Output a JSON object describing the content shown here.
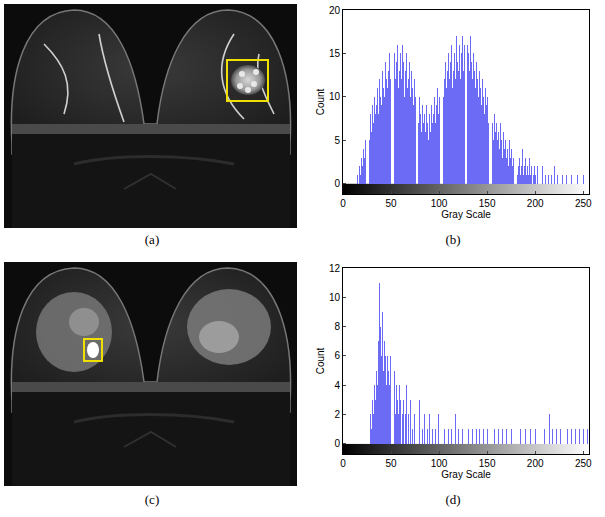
{
  "images": [
    {
      "label": "(a)"
    },
    {
      "label": "(c)"
    }
  ],
  "chart_data": [
    {
      "type": "bar",
      "title": "(b)",
      "x_label": "Gray Scale",
      "y_label": "Count",
      "color": "#6b6bf5",
      "grid": false,
      "xlim": [
        0,
        256
      ],
      "xticks": [
        0,
        50,
        100,
        150,
        200,
        250
      ],
      "ylim": [
        -1.2,
        20
      ],
      "yticks": [
        0,
        5,
        10,
        15,
        20
      ],
      "x": [
        15,
        16,
        17,
        18,
        19,
        20,
        21,
        22,
        23,
        24,
        25,
        26,
        27,
        28,
        29,
        30,
        31,
        32,
        33,
        34,
        35,
        36,
        37,
        38,
        39,
        40,
        41,
        42,
        43,
        44,
        45,
        46,
        47,
        48,
        49,
        50,
        51,
        52,
        53,
        54,
        55,
        56,
        57,
        58,
        59,
        60,
        61,
        62,
        63,
        64,
        65,
        66,
        67,
        68,
        69,
        70,
        71,
        72,
        73,
        74,
        75,
        76,
        77,
        78,
        79,
        80,
        81,
        82,
        83,
        84,
        85,
        86,
        87,
        88,
        89,
        90,
        91,
        92,
        93,
        94,
        95,
        96,
        97,
        98,
        99,
        100,
        101,
        102,
        103,
        104,
        105,
        106,
        107,
        108,
        109,
        110,
        111,
        112,
        113,
        114,
        115,
        116,
        117,
        118,
        119,
        120,
        121,
        122,
        123,
        124,
        125,
        126,
        127,
        128,
        129,
        130,
        131,
        132,
        133,
        134,
        135,
        136,
        137,
        138,
        139,
        140,
        141,
        142,
        143,
        144,
        145,
        146,
        147,
        148,
        149,
        150,
        151,
        152,
        153,
        154,
        155,
        156,
        157,
        158,
        159,
        160,
        161,
        162,
        163,
        164,
        165,
        166,
        167,
        168,
        169,
        170,
        171,
        172,
        173,
        174,
        175,
        176,
        177,
        178,
        179,
        180,
        181,
        182,
        183,
        184,
        185,
        186,
        187,
        188,
        189,
        190,
        191,
        192,
        193,
        194,
        195,
        196,
        197,
        198,
        199,
        200,
        202,
        204,
        206,
        208,
        211,
        214,
        217,
        220,
        223,
        228,
        233,
        238,
        244,
        250
      ],
      "values": [
        1,
        0,
        2,
        1,
        3,
        2,
        4,
        3,
        5,
        2,
        6,
        4,
        7,
        5,
        8,
        6,
        9,
        7,
        10,
        8,
        9,
        11,
        8,
        12,
        10,
        9,
        13,
        11,
        10,
        14,
        12,
        11,
        13,
        15,
        12,
        10,
        14,
        13,
        11,
        15,
        12,
        14,
        16,
        11,
        13,
        15,
        12,
        16,
        14,
        10,
        13,
        15,
        11,
        12,
        14,
        10,
        13,
        11,
        9,
        12,
        10,
        8,
        11,
        9,
        7,
        10,
        8,
        6,
        9,
        7,
        8,
        6,
        9,
        7,
        5,
        8,
        6,
        9,
        7,
        8,
        10,
        7,
        9,
        11,
        8,
        10,
        12,
        9,
        11,
        13,
        10,
        12,
        14,
        11,
        13,
        15,
        12,
        14,
        16,
        11,
        13,
        15,
        12,
        17,
        14,
        13,
        16,
        12,
        15,
        17,
        13,
        16,
        18,
        14,
        12,
        16,
        15,
        13,
        17,
        14,
        12,
        15,
        13,
        11,
        14,
        12,
        10,
        13,
        11,
        9,
        12,
        10,
        8,
        11,
        9,
        10,
        7,
        9,
        8,
        6,
        9,
        7,
        5,
        8,
        6,
        7,
        5,
        6,
        4,
        7,
        5,
        3,
        6,
        4,
        5,
        3,
        4,
        2,
        5,
        3,
        4,
        2,
        3,
        1,
        4,
        2,
        3,
        1,
        2,
        3,
        1,
        2,
        4,
        1,
        2,
        3,
        1,
        2,
        1,
        3,
        1,
        2,
        0,
        1,
        2,
        1,
        2,
        1,
        1,
        2,
        1,
        1,
        1,
        2,
        1,
        1,
        1,
        1,
        1,
        1
      ]
    },
    {
      "type": "bar",
      "title": "(d)",
      "x_label": "Gray Scale",
      "y_label": "Count",
      "color": "#6b6bf5",
      "grid": false,
      "xlim": [
        0,
        256
      ],
      "xticks": [
        0,
        50,
        100,
        150,
        200,
        250
      ],
      "ylim": [
        -0.7,
        12
      ],
      "yticks": [
        0,
        2,
        4,
        6,
        8,
        10,
        12
      ],
      "x": [
        24,
        27,
        29,
        30,
        31,
        32,
        33,
        34,
        35,
        36,
        37,
        38,
        39,
        40,
        41,
        42,
        43,
        44,
        45,
        46,
        47,
        48,
        49,
        50,
        51,
        52,
        53,
        54,
        55,
        56,
        57,
        58,
        59,
        60,
        62,
        63,
        65,
        66,
        68,
        70,
        72,
        74,
        76,
        78,
        80,
        83,
        85,
        88,
        90,
        93,
        96,
        99,
        103,
        106,
        110,
        113,
        117,
        120,
        124,
        128,
        131,
        135,
        139,
        142,
        146,
        150,
        154,
        158,
        162,
        166,
        170,
        175,
        180,
        185,
        190,
        195,
        200,
        205,
        210,
        215,
        218,
        222,
        226,
        230,
        234,
        238,
        242,
        246,
        250,
        254
      ],
      "values": [
        2,
        1,
        2,
        1,
        3,
        2,
        4,
        3,
        5,
        4,
        7,
        11,
        8,
        6,
        9,
        5,
        7,
        6,
        4,
        6,
        5,
        4,
        6,
        3,
        5,
        4,
        3,
        5,
        2,
        4,
        3,
        2,
        4,
        3,
        2,
        3,
        2,
        4,
        2,
        3,
        1,
        2,
        2,
        1,
        3,
        1,
        2,
        1,
        2,
        1,
        1,
        2,
        1,
        1,
        1,
        1,
        2,
        1,
        1,
        1,
        1,
        1,
        1,
        1,
        1,
        1,
        1,
        1,
        1,
        1,
        1,
        1,
        1,
        1,
        1,
        1,
        1,
        1,
        1,
        2,
        1,
        1,
        1,
        1,
        1,
        1,
        1,
        1,
        1,
        1
      ]
    }
  ]
}
